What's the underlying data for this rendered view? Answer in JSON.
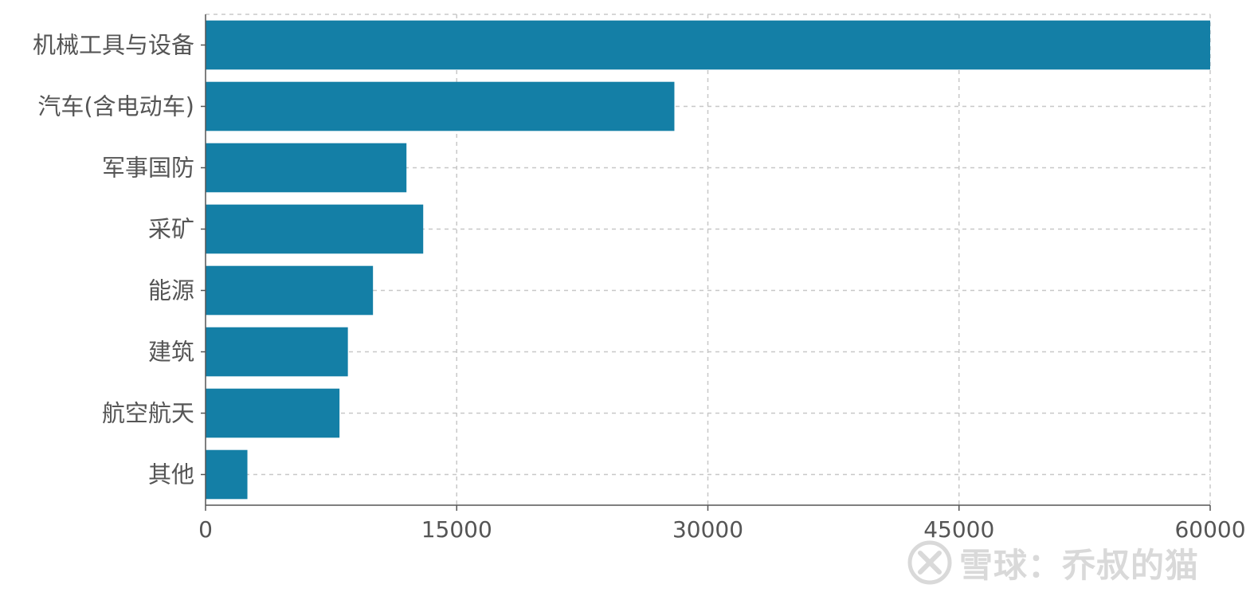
{
  "chart_data": {
    "type": "bar",
    "orientation": "horizontal",
    "categories": [
      "机械工具与设备",
      "汽车(含电动车)",
      "军事国防",
      "采矿",
      "能源",
      "建筑",
      "航空航天",
      "其他"
    ],
    "values": [
      60000,
      28000,
      12000,
      13000,
      10000,
      8500,
      8000,
      2500
    ],
    "xlim": [
      0,
      60000
    ],
    "xticks": [
      0,
      15000,
      30000,
      45000,
      60000
    ],
    "xtick_labels": [
      "0",
      "15000",
      "30000",
      "45000",
      "60000"
    ],
    "grid": true,
    "legend": "none",
    "colors": {
      "bar": "#147FA6",
      "text": "#555555",
      "grid": "#c8c8c8"
    }
  },
  "watermark": {
    "text": "雪球：乔叔的猫",
    "icon": "snowball-logo-icon"
  }
}
